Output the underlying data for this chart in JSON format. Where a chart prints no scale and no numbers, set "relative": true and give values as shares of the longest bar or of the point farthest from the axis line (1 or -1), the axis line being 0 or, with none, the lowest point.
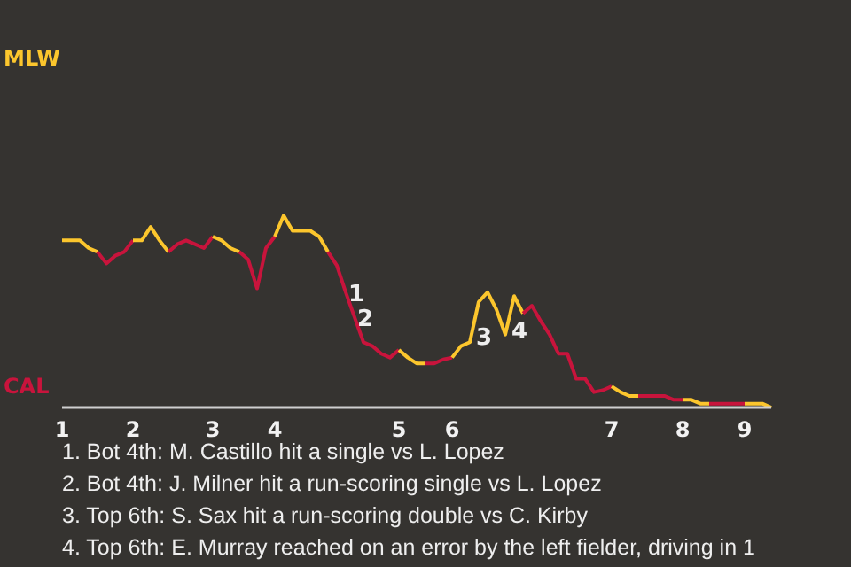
{
  "chart_data": {
    "type": "line",
    "relative": true,
    "categories": [
      "1",
      null,
      null,
      null,
      null,
      null,
      null,
      null,
      "2",
      null,
      null,
      null,
      null,
      null,
      null,
      null,
      null,
      "3",
      null,
      null,
      null,
      null,
      null,
      null,
      "4",
      null,
      null,
      null,
      null,
      null,
      null,
      null,
      null,
      null,
      null,
      null,
      null,
      null,
      "5",
      null,
      null,
      null,
      null,
      null,
      "6",
      null,
      null,
      null,
      null,
      null,
      null,
      null,
      null,
      null,
      null,
      null,
      null,
      null,
      null,
      null,
      null,
      null,
      "7",
      null,
      null,
      null,
      null,
      null,
      null,
      null,
      "8",
      null,
      null,
      null,
      null,
      null,
      null,
      "9",
      null,
      null,
      null
    ],
    "series": [
      {
        "name": "MLW",
        "color": "#fcc62d",
        "values": [
          0.87,
          0.87,
          0.87,
          0.83,
          0.81,
          null,
          null,
          null,
          null,
          null,
          null,
          null,
          null,
          null,
          null,
          null,
          null,
          null,
          null,
          null,
          null,
          null,
          null,
          null,
          null,
          null,
          null,
          null,
          null,
          null,
          null,
          null,
          null,
          null,
          null,
          null,
          null,
          null,
          null,
          null,
          null,
          null,
          null,
          null,
          null,
          null,
          null,
          null,
          null,
          null,
          null,
          null,
          null,
          null,
          null,
          null,
          null,
          null,
          null,
          null,
          null,
          null,
          null,
          null,
          null,
          null,
          null,
          null,
          null,
          null,
          null,
          null,
          null,
          null,
          null,
          null,
          null,
          null,
          null,
          null,
          null
        ]
      },
      {
        "name": "CAL",
        "color": "#c8143c",
        "values": [
          null,
          null,
          null,
          null,
          0.81,
          0.75,
          0.79,
          0.81,
          0.87,
          null,
          null,
          null,
          null,
          null,
          null,
          null,
          null,
          null,
          null,
          null,
          null,
          null,
          null,
          null,
          null,
          null,
          null,
          null,
          null,
          null,
          null,
          null,
          null,
          null,
          null,
          null,
          null,
          null,
          null,
          null,
          null,
          null,
          null,
          null,
          null,
          null,
          null,
          null,
          null,
          null,
          null,
          null,
          null,
          null,
          null,
          null,
          null,
          null,
          null,
          null,
          null,
          null,
          null,
          null,
          null,
          null,
          null,
          null,
          null,
          null,
          null,
          null,
          null,
          null,
          null,
          null,
          null,
          null,
          null,
          null,
          null
        ]
      },
      {
        "color": "#fcc62d",
        "values": [
          null,
          null,
          null,
          null,
          null,
          null,
          null,
          null,
          0.87,
          0.87,
          0.94,
          0.87,
          0.81,
          null,
          null,
          null,
          null,
          null,
          null,
          null,
          null,
          null,
          null,
          null,
          null,
          null,
          null,
          null,
          null,
          null,
          null,
          null,
          null,
          null,
          null,
          null,
          null,
          null,
          null,
          null,
          null,
          null,
          null,
          null,
          null,
          null,
          null,
          null,
          null,
          null,
          null,
          null,
          null,
          null,
          null,
          null,
          null,
          null,
          null,
          null,
          null,
          null,
          null,
          null,
          null,
          null,
          null,
          null,
          null,
          null,
          null,
          null,
          null,
          null,
          null,
          null,
          null,
          null,
          null,
          null,
          null
        ]
      },
      {
        "color": "#c8143c",
        "values": [
          null,
          null,
          null,
          null,
          null,
          null,
          null,
          null,
          null,
          null,
          null,
          null,
          0.81,
          0.85,
          0.87,
          0.85,
          0.83,
          0.89,
          null,
          null,
          null,
          null,
          null,
          null,
          null,
          null,
          null,
          null,
          null,
          null,
          null,
          null,
          null,
          null,
          null,
          null,
          null,
          null,
          null,
          null,
          null,
          null,
          null,
          null,
          null,
          null,
          null,
          null,
          null,
          null,
          null,
          null,
          null,
          null,
          null,
          null,
          null,
          null,
          null,
          null,
          null,
          null,
          null,
          null,
          null,
          null,
          null,
          null,
          null,
          null,
          null,
          null,
          null,
          null,
          null,
          null,
          null,
          null,
          null,
          null,
          null
        ]
      },
      {
        "color": "#fcc62d",
        "values": [
          null,
          null,
          null,
          null,
          null,
          null,
          null,
          null,
          null,
          null,
          null,
          null,
          null,
          null,
          null,
          null,
          null,
          0.89,
          0.87,
          0.83,
          0.81,
          null,
          null,
          null,
          null,
          null,
          null,
          null,
          null,
          null,
          null,
          null,
          null,
          null,
          null,
          null,
          null,
          null,
          null,
          null,
          null,
          null,
          null,
          null,
          null,
          null,
          null,
          null,
          null,
          null,
          null,
          null,
          null,
          null,
          null,
          null,
          null,
          null,
          null,
          null,
          null,
          null,
          null,
          null,
          null,
          null,
          null,
          null,
          null,
          null,
          null,
          null,
          null,
          null,
          null,
          null,
          null,
          null,
          null,
          null,
          null
        ]
      },
      {
        "color": "#c8143c",
        "values": [
          null,
          null,
          null,
          null,
          null,
          null,
          null,
          null,
          null,
          null,
          null,
          null,
          null,
          null,
          null,
          null,
          null,
          null,
          null,
          null,
          0.81,
          0.77,
          0.62,
          0.83,
          0.89,
          null,
          null,
          null,
          null,
          null,
          null,
          null,
          null,
          null,
          null,
          null,
          null,
          null,
          null,
          null,
          null,
          null,
          null,
          null,
          null,
          null,
          null,
          null,
          null,
          null,
          null,
          null,
          null,
          null,
          null,
          null,
          null,
          null,
          null,
          null,
          null,
          null,
          null,
          null,
          null,
          null,
          null,
          null,
          null,
          null,
          null,
          null,
          null,
          null,
          null,
          null,
          null,
          null,
          null,
          null,
          null
        ]
      },
      {
        "color": "#fcc62d",
        "values": [
          null,
          null,
          null,
          null,
          null,
          null,
          null,
          null,
          null,
          null,
          null,
          null,
          null,
          null,
          null,
          null,
          null,
          null,
          null,
          null,
          null,
          null,
          null,
          null,
          0.89,
          1,
          0.92,
          0.92,
          0.92,
          0.89,
          0.81,
          null,
          null,
          null,
          null,
          null,
          null,
          null,
          null,
          null,
          null,
          null,
          null,
          null,
          null,
          null,
          null,
          null,
          null,
          null,
          null,
          null,
          null,
          null,
          null,
          null,
          null,
          null,
          null,
          null,
          null,
          null,
          null,
          null,
          null,
          null,
          null,
          null,
          null,
          null,
          null,
          null,
          null,
          null,
          null,
          null,
          null,
          null,
          null,
          null,
          null
        ]
      },
      {
        "color": "#c8143c",
        "values": [
          null,
          null,
          null,
          null,
          null,
          null,
          null,
          null,
          null,
          null,
          null,
          null,
          null,
          null,
          null,
          null,
          null,
          null,
          null,
          null,
          null,
          null,
          null,
          null,
          null,
          null,
          null,
          null,
          null,
          null,
          0.81,
          0.74,
          0.6,
          0.47,
          0.34,
          0.32,
          0.28,
          0.26,
          0.3,
          null,
          null,
          null,
          null,
          null,
          null,
          null,
          null,
          null,
          null,
          null,
          null,
          null,
          null,
          null,
          null,
          null,
          null,
          null,
          null,
          null,
          null,
          null,
          null,
          null,
          null,
          null,
          null,
          null,
          null,
          null,
          null,
          null,
          null,
          null,
          null,
          null,
          null,
          null,
          null,
          null,
          null
        ]
      },
      {
        "color": "#fcc62d",
        "values": [
          null,
          null,
          null,
          null,
          null,
          null,
          null,
          null,
          null,
          null,
          null,
          null,
          null,
          null,
          null,
          null,
          null,
          null,
          null,
          null,
          null,
          null,
          null,
          null,
          null,
          null,
          null,
          null,
          null,
          null,
          null,
          null,
          null,
          null,
          null,
          null,
          null,
          null,
          0.3,
          0.26,
          0.23,
          0.23,
          null,
          null,
          null,
          null,
          null,
          null,
          null,
          null,
          null,
          null,
          null,
          null,
          null,
          null,
          null,
          null,
          null,
          null,
          null,
          null,
          null,
          null,
          null,
          null,
          null,
          null,
          null,
          null,
          null,
          null,
          null,
          null,
          null,
          null,
          null,
          null,
          null,
          null,
          null
        ]
      },
      {
        "color": "#c8143c",
        "values": [
          null,
          null,
          null,
          null,
          null,
          null,
          null,
          null,
          null,
          null,
          null,
          null,
          null,
          null,
          null,
          null,
          null,
          null,
          null,
          null,
          null,
          null,
          null,
          null,
          null,
          null,
          null,
          null,
          null,
          null,
          null,
          null,
          null,
          null,
          null,
          null,
          null,
          null,
          null,
          null,
          null,
          0.23,
          0.23,
          0.25,
          0.26,
          null,
          null,
          null,
          null,
          null,
          null,
          null,
          null,
          null,
          null,
          null,
          null,
          null,
          null,
          null,
          null,
          null,
          null,
          null,
          null,
          null,
          null,
          null,
          null,
          null,
          null,
          null,
          null,
          null,
          null,
          null,
          null,
          null,
          null,
          null,
          null
        ]
      },
      {
        "color": "#fcc62d",
        "values": [
          null,
          null,
          null,
          null,
          null,
          null,
          null,
          null,
          null,
          null,
          null,
          null,
          null,
          null,
          null,
          null,
          null,
          null,
          null,
          null,
          null,
          null,
          null,
          null,
          null,
          null,
          null,
          null,
          null,
          null,
          null,
          null,
          null,
          null,
          null,
          null,
          null,
          null,
          null,
          null,
          null,
          null,
          null,
          null,
          0.26,
          0.32,
          0.34,
          0.55,
          0.6,
          0.51,
          0.38,
          0.58,
          0.49,
          null,
          null,
          null,
          null,
          null,
          null,
          null,
          null,
          null,
          null,
          null,
          null,
          null,
          null,
          null,
          null,
          null,
          null,
          null,
          null,
          null,
          null,
          null,
          null,
          null,
          null,
          null,
          null
        ]
      },
      {
        "color": "#c8143c",
        "values": [
          null,
          null,
          null,
          null,
          null,
          null,
          null,
          null,
          null,
          null,
          null,
          null,
          null,
          null,
          null,
          null,
          null,
          null,
          null,
          null,
          null,
          null,
          null,
          null,
          null,
          null,
          null,
          null,
          null,
          null,
          null,
          null,
          null,
          null,
          null,
          null,
          null,
          null,
          null,
          null,
          null,
          null,
          null,
          null,
          null,
          null,
          null,
          null,
          null,
          null,
          null,
          null,
          0.49,
          0.53,
          0.45,
          0.38,
          0.28,
          0.28,
          0.15,
          0.15,
          0.08,
          0.09,
          0.11,
          null,
          null,
          null,
          null,
          null,
          null,
          null,
          null,
          null,
          null,
          null,
          null,
          null,
          null,
          null,
          null,
          null,
          null
        ]
      },
      {
        "color": "#fcc62d",
        "values": [
          null,
          null,
          null,
          null,
          null,
          null,
          null,
          null,
          null,
          null,
          null,
          null,
          null,
          null,
          null,
          null,
          null,
          null,
          null,
          null,
          null,
          null,
          null,
          null,
          null,
          null,
          null,
          null,
          null,
          null,
          null,
          null,
          null,
          null,
          null,
          null,
          null,
          null,
          null,
          null,
          null,
          null,
          null,
          null,
          null,
          null,
          null,
          null,
          null,
          null,
          null,
          null,
          null,
          null,
          null,
          null,
          null,
          null,
          null,
          null,
          null,
          null,
          0.11,
          0.08,
          0.06,
          0.06,
          null,
          null,
          null,
          null,
          null,
          null,
          null,
          null,
          null,
          null,
          null,
          null,
          null,
          null,
          null
        ]
      },
      {
        "color": "#c8143c",
        "values": [
          null,
          null,
          null,
          null,
          null,
          null,
          null,
          null,
          null,
          null,
          null,
          null,
          null,
          null,
          null,
          null,
          null,
          null,
          null,
          null,
          null,
          null,
          null,
          null,
          null,
          null,
          null,
          null,
          null,
          null,
          null,
          null,
          null,
          null,
          null,
          null,
          null,
          null,
          null,
          null,
          null,
          null,
          null,
          null,
          null,
          null,
          null,
          null,
          null,
          null,
          null,
          null,
          null,
          null,
          null,
          null,
          null,
          null,
          null,
          null,
          null,
          null,
          null,
          null,
          null,
          0.06,
          0.06,
          0.06,
          0.06,
          0.04,
          0.04,
          null,
          null,
          null,
          null,
          null,
          null,
          null,
          null,
          null,
          null
        ]
      },
      {
        "color": "#fcc62d",
        "values": [
          null,
          null,
          null,
          null,
          null,
          null,
          null,
          null,
          null,
          null,
          null,
          null,
          null,
          null,
          null,
          null,
          null,
          null,
          null,
          null,
          null,
          null,
          null,
          null,
          null,
          null,
          null,
          null,
          null,
          null,
          null,
          null,
          null,
          null,
          null,
          null,
          null,
          null,
          null,
          null,
          null,
          null,
          null,
          null,
          null,
          null,
          null,
          null,
          null,
          null,
          null,
          null,
          null,
          null,
          null,
          null,
          null,
          null,
          null,
          null,
          null,
          null,
          null,
          null,
          null,
          null,
          null,
          null,
          null,
          null,
          0.04,
          0.04,
          0.02,
          0.02,
          null,
          null,
          null,
          null,
          null,
          null,
          null
        ]
      },
      {
        "color": "#c8143c",
        "values": [
          null,
          null,
          null,
          null,
          null,
          null,
          null,
          null,
          null,
          null,
          null,
          null,
          null,
          null,
          null,
          null,
          null,
          null,
          null,
          null,
          null,
          null,
          null,
          null,
          null,
          null,
          null,
          null,
          null,
          null,
          null,
          null,
          null,
          null,
          null,
          null,
          null,
          null,
          null,
          null,
          null,
          null,
          null,
          null,
          null,
          null,
          null,
          null,
          null,
          null,
          null,
          null,
          null,
          null,
          null,
          null,
          null,
          null,
          null,
          null,
          null,
          null,
          null,
          null,
          null,
          null,
          null,
          null,
          null,
          null,
          null,
          null,
          null,
          0.02,
          0.02,
          0.02,
          0.02,
          0.02,
          null,
          null,
          null
        ]
      },
      {
        "color": "#fcc62d",
        "values": [
          null,
          null,
          null,
          null,
          null,
          null,
          null,
          null,
          null,
          null,
          null,
          null,
          null,
          null,
          null,
          null,
          null,
          null,
          null,
          null,
          null,
          null,
          null,
          null,
          null,
          null,
          null,
          null,
          null,
          null,
          null,
          null,
          null,
          null,
          null,
          null,
          null,
          null,
          null,
          null,
          null,
          null,
          null,
          null,
          null,
          null,
          null,
          null,
          null,
          null,
          null,
          null,
          null,
          null,
          null,
          null,
          null,
          null,
          null,
          null,
          null,
          null,
          null,
          null,
          null,
          null,
          null,
          null,
          null,
          null,
          null,
          null,
          null,
          null,
          null,
          null,
          null,
          0.02,
          0.02,
          0.02,
          0
        ]
      }
    ],
    "annotations": [
      {
        "text": "1",
        "y": 0.6
      },
      {
        "text": "2",
        "y": 0.47
      },
      {
        "text": "3",
        "y": 0.55
      },
      {
        "text": "4",
        "y": 0.58
      },
      "1. Bot 4th: M. Castillo hit a single vs L. Lopez",
      "2. Bot 4th: J. Milner hit a run-scoring single vs L. Lopez",
      "3. Top 6th: S. Sax hit a run-scoring double vs C. Kirby",
      "4. Top 6th: E. Murray reached on an error by the left fielder, driving in 1"
    ]
  }
}
